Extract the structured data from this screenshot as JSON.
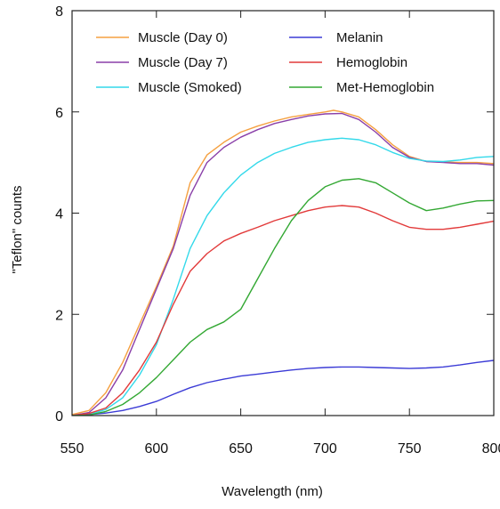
{
  "chart_data": {
    "type": "line",
    "title": "",
    "xlabel": "Wavelength (nm)",
    "ylabel": "\"Teflon\" counts",
    "xlim": [
      550,
      800
    ],
    "ylim": [
      0,
      8
    ],
    "xticks": [
      "550",
      "600",
      "650",
      "700",
      "750",
      "800"
    ],
    "yticks": [
      "0",
      "2",
      "4",
      "6",
      "8"
    ],
    "grid": false,
    "legend_position": "top",
    "series": [
      {
        "name": "Muscle (Day 0)",
        "color": "#f5a040",
        "points": [
          [
            550,
            0.02
          ],
          [
            560,
            0.1
          ],
          [
            570,
            0.45
          ],
          [
            580,
            1.05
          ],
          [
            590,
            1.8
          ],
          [
            600,
            2.55
          ],
          [
            610,
            3.35
          ],
          [
            620,
            4.6
          ],
          [
            630,
            5.15
          ],
          [
            640,
            5.4
          ],
          [
            650,
            5.6
          ],
          [
            660,
            5.72
          ],
          [
            670,
            5.82
          ],
          [
            680,
            5.9
          ],
          [
            690,
            5.95
          ],
          [
            700,
            6.0
          ],
          [
            705,
            6.03
          ],
          [
            710,
            6.0
          ],
          [
            720,
            5.9
          ],
          [
            730,
            5.65
          ],
          [
            740,
            5.35
          ],
          [
            750,
            5.12
          ],
          [
            760,
            5.02
          ],
          [
            770,
            5.01
          ],
          [
            780,
            5.0
          ],
          [
            790,
            5.0
          ],
          [
            800,
            4.98
          ]
        ]
      },
      {
        "name": "Muscle (Day 7)",
        "color": "#8a3fa8",
        "points": [
          [
            550,
            0.0
          ],
          [
            560,
            0.06
          ],
          [
            570,
            0.35
          ],
          [
            580,
            0.9
          ],
          [
            590,
            1.7
          ],
          [
            600,
            2.5
          ],
          [
            610,
            3.3
          ],
          [
            620,
            4.35
          ],
          [
            630,
            5.0
          ],
          [
            640,
            5.3
          ],
          [
            650,
            5.5
          ],
          [
            660,
            5.65
          ],
          [
            670,
            5.77
          ],
          [
            680,
            5.85
          ],
          [
            690,
            5.92
          ],
          [
            700,
            5.96
          ],
          [
            710,
            5.97
          ],
          [
            720,
            5.85
          ],
          [
            730,
            5.6
          ],
          [
            740,
            5.3
          ],
          [
            750,
            5.1
          ],
          [
            760,
            5.02
          ],
          [
            770,
            5.0
          ],
          [
            780,
            4.98
          ],
          [
            790,
            4.98
          ],
          [
            800,
            4.95
          ]
        ]
      },
      {
        "name": "Muscle (Smoked)",
        "color": "#33d9ea",
        "points": [
          [
            550,
            0.0
          ],
          [
            560,
            0.02
          ],
          [
            570,
            0.12
          ],
          [
            580,
            0.35
          ],
          [
            590,
            0.8
          ],
          [
            600,
            1.4
          ],
          [
            610,
            2.3
          ],
          [
            620,
            3.3
          ],
          [
            630,
            3.95
          ],
          [
            640,
            4.4
          ],
          [
            650,
            4.75
          ],
          [
            660,
            5.0
          ],
          [
            670,
            5.18
          ],
          [
            680,
            5.3
          ],
          [
            690,
            5.4
          ],
          [
            700,
            5.45
          ],
          [
            710,
            5.48
          ],
          [
            720,
            5.45
          ],
          [
            730,
            5.35
          ],
          [
            740,
            5.2
          ],
          [
            750,
            5.08
          ],
          [
            760,
            5.03
          ],
          [
            770,
            5.02
          ],
          [
            780,
            5.05
          ],
          [
            790,
            5.1
          ],
          [
            800,
            5.12
          ]
        ]
      },
      {
        "name": "Melanin",
        "color": "#3b3bd6",
        "points": [
          [
            550,
            0.0
          ],
          [
            560,
            0.02
          ],
          [
            570,
            0.05
          ],
          [
            580,
            0.1
          ],
          [
            590,
            0.18
          ],
          [
            600,
            0.28
          ],
          [
            610,
            0.42
          ],
          [
            620,
            0.55
          ],
          [
            630,
            0.65
          ],
          [
            640,
            0.72
          ],
          [
            650,
            0.78
          ],
          [
            660,
            0.82
          ],
          [
            670,
            0.86
          ],
          [
            680,
            0.9
          ],
          [
            690,
            0.93
          ],
          [
            700,
            0.95
          ],
          [
            710,
            0.96
          ],
          [
            720,
            0.96
          ],
          [
            730,
            0.95
          ],
          [
            740,
            0.94
          ],
          [
            750,
            0.93
          ],
          [
            760,
            0.94
          ],
          [
            770,
            0.96
          ],
          [
            780,
            1.0
          ],
          [
            790,
            1.05
          ],
          [
            800,
            1.09
          ]
        ]
      },
      {
        "name": "Hemoglobin",
        "color": "#e23a3a",
        "points": [
          [
            550,
            0.0
          ],
          [
            560,
            0.04
          ],
          [
            570,
            0.15
          ],
          [
            580,
            0.45
          ],
          [
            590,
            0.9
          ],
          [
            600,
            1.45
          ],
          [
            610,
            2.2
          ],
          [
            620,
            2.85
          ],
          [
            630,
            3.2
          ],
          [
            640,
            3.45
          ],
          [
            650,
            3.6
          ],
          [
            660,
            3.72
          ],
          [
            670,
            3.85
          ],
          [
            680,
            3.95
          ],
          [
            690,
            4.05
          ],
          [
            700,
            4.12
          ],
          [
            710,
            4.15
          ],
          [
            720,
            4.12
          ],
          [
            730,
            4.0
          ],
          [
            740,
            3.85
          ],
          [
            750,
            3.72
          ],
          [
            760,
            3.68
          ],
          [
            770,
            3.68
          ],
          [
            780,
            3.72
          ],
          [
            790,
            3.78
          ],
          [
            800,
            3.84
          ]
        ]
      },
      {
        "name": "Met-Hemoglobin",
        "color": "#33a833",
        "points": [
          [
            550,
            0.0
          ],
          [
            560,
            0.01
          ],
          [
            570,
            0.08
          ],
          [
            580,
            0.22
          ],
          [
            590,
            0.45
          ],
          [
            600,
            0.75
          ],
          [
            610,
            1.1
          ],
          [
            620,
            1.45
          ],
          [
            630,
            1.7
          ],
          [
            640,
            1.85
          ],
          [
            650,
            2.1
          ],
          [
            660,
            2.7
          ],
          [
            670,
            3.3
          ],
          [
            680,
            3.85
          ],
          [
            690,
            4.25
          ],
          [
            700,
            4.52
          ],
          [
            710,
            4.65
          ],
          [
            720,
            4.68
          ],
          [
            730,
            4.6
          ],
          [
            740,
            4.4
          ],
          [
            750,
            4.2
          ],
          [
            760,
            4.05
          ],
          [
            770,
            4.1
          ],
          [
            780,
            4.18
          ],
          [
            790,
            4.24
          ],
          [
            800,
            4.25
          ]
        ]
      }
    ]
  }
}
